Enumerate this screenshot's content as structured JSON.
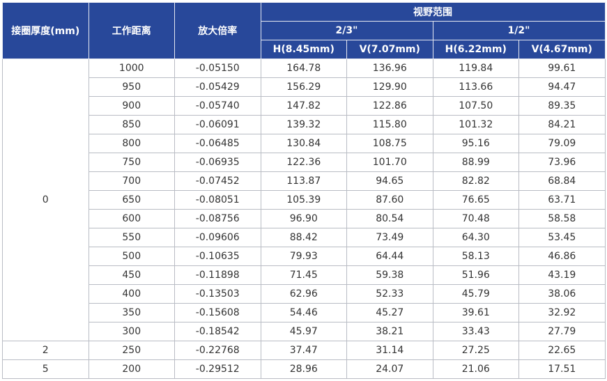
{
  "header": {
    "thickness": "接圈厚度(mm)",
    "distance": "工作距离",
    "magnification": "放大倍率",
    "fov": "视野范围",
    "sensors": [
      "2/3\"",
      "1/2\""
    ],
    "dims": [
      "H(8.45mm)",
      "V(7.07mm)",
      "H(6.22mm)",
      "V(4.67mm)"
    ]
  },
  "groups": [
    {
      "thickness": "0",
      "rows": [
        [
          "1000",
          "-0.05150",
          "164.78",
          "136.96",
          "119.84",
          "99.61"
        ],
        [
          "950",
          "-0.05429",
          "156.29",
          "129.90",
          "113.66",
          "94.47"
        ],
        [
          "900",
          "-0.05740",
          "147.82",
          "122.86",
          "107.50",
          "89.35"
        ],
        [
          "850",
          "-0.06091",
          "139.32",
          "115.80",
          "101.32",
          "84.21"
        ],
        [
          "800",
          "-0.06485",
          "130.84",
          "108.75",
          "95.16",
          "79.09"
        ],
        [
          "750",
          "-0.06935",
          "122.36",
          "101.70",
          "88.99",
          "73.96"
        ],
        [
          "700",
          "-0.07452",
          "113.87",
          "94.65",
          "82.82",
          "68.84"
        ],
        [
          "650",
          "-0.08051",
          "105.39",
          "87.60",
          "76.65",
          "63.71"
        ],
        [
          "600",
          "-0.08756",
          "96.90",
          "80.54",
          "70.48",
          "58.58"
        ],
        [
          "550",
          "-0.09606",
          "88.42",
          "73.49",
          "64.30",
          "53.45"
        ],
        [
          "500",
          "-0.10635",
          "79.93",
          "64.44",
          "58.13",
          "46.86"
        ],
        [
          "450",
          "-0.11898",
          "71.45",
          "59.38",
          "51.96",
          "43.19"
        ],
        [
          "400",
          "-0.13503",
          "62.96",
          "52.33",
          "45.79",
          "38.06"
        ],
        [
          "350",
          "-0.15608",
          "54.46",
          "45.27",
          "39.61",
          "32.92"
        ],
        [
          "300",
          "-0.18542",
          "45.97",
          "38.21",
          "33.43",
          "27.79"
        ]
      ]
    },
    {
      "thickness": "2",
      "rows": [
        [
          "250",
          "-0.22768",
          "37.47",
          "31.14",
          "27.25",
          "22.65"
        ]
      ]
    },
    {
      "thickness": "5",
      "rows": [
        [
          "200",
          "-0.29512",
          "28.96",
          "24.07",
          "21.06",
          "17.51"
        ]
      ]
    }
  ]
}
